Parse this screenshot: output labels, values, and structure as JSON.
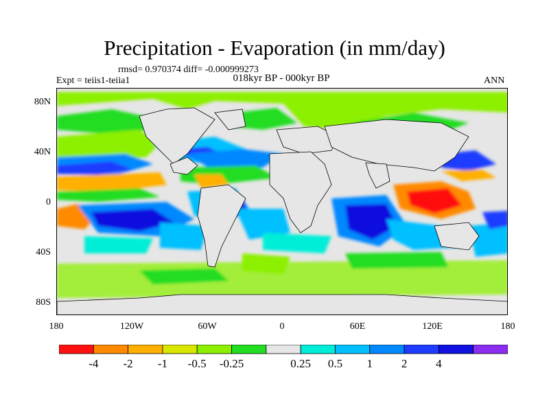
{
  "title": "Precipitation - Evaporation (in mm/day)",
  "stats": "rmsd= 0.970374 diff= -0.000999273",
  "experiment": "Expt = teiis1-teiia1",
  "period": "018kyr BP - 000kyr BP",
  "season": "ANN",
  "lat_labels": [
    "80N",
    "40N",
    "0",
    "40S",
    "80S"
  ],
  "lon_labels": [
    "180",
    "120W",
    "60W",
    "0",
    "60E",
    "120E",
    "180"
  ],
  "colorbar": {
    "colors": [
      "#ff1010",
      "#ff8a00",
      "#ffb000",
      "#d8e600",
      "#8cf000",
      "#22dd22",
      "#e6e6e6",
      "#00eed8",
      "#00c0ff",
      "#0088ff",
      "#1e3cff",
      "#1010e0",
      "#8c2cf0"
    ],
    "labels": [
      "-4",
      "-2",
      "-1",
      "-0.5",
      "-0.25",
      "0.25",
      "0.5",
      "1",
      "2",
      "4"
    ]
  }
}
